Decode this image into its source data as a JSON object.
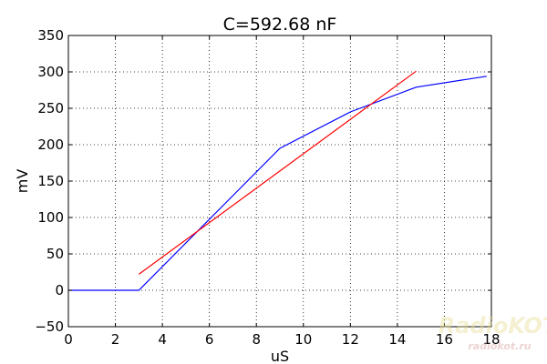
{
  "chart_data": {
    "type": "line",
    "title": "C=592.68 nF",
    "xlabel": "uS",
    "ylabel": "mV",
    "xlim": [
      0,
      18
    ],
    "ylim": [
      -50,
      350
    ],
    "xticks": [
      0,
      2,
      4,
      6,
      8,
      10,
      12,
      14,
      16,
      18
    ],
    "yticks": [
      -50,
      0,
      50,
      100,
      150,
      200,
      250,
      300,
      350
    ],
    "grid": true,
    "series": [
      {
        "color": "#0000ff",
        "x": [
          0,
          3,
          9,
          12,
          14.8,
          17.8
        ],
        "y": [
          0,
          0,
          195,
          245,
          279,
          294
        ]
      },
      {
        "color": "#ff0000",
        "x": [
          3,
          14.8
        ],
        "y": [
          22,
          301
        ]
      }
    ]
  },
  "watermark": {
    "logo_text": "RadioKOT",
    "site_text": "radiokot.ru"
  }
}
